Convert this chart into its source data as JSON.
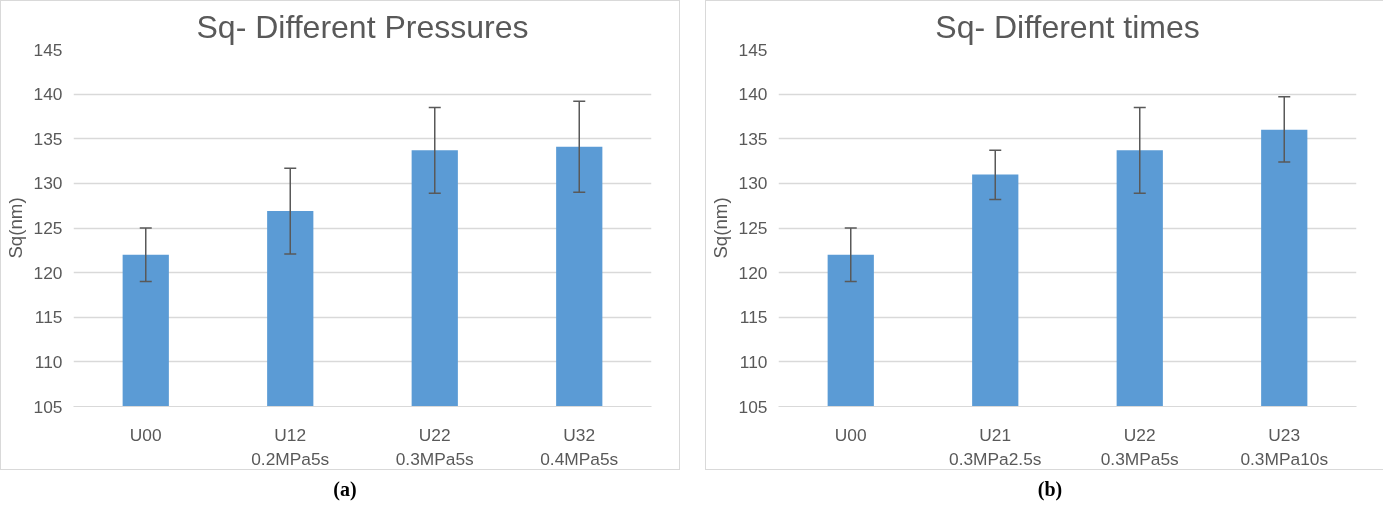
{
  "chart_data": [
    {
      "type": "bar",
      "title": "Sq- Different Pressures",
      "ylabel": "Sq(nm)",
      "categories": [
        "U00",
        "U12\n0.2MPa5s",
        "U22\n0.3MPa5s",
        "U32\n0.4MPa5s"
      ],
      "values": [
        122,
        126.9,
        133.7,
        134.1
      ],
      "errors": [
        [
          119,
          125
        ],
        [
          122.1,
          131.7
        ],
        [
          128.9,
          138.5
        ],
        [
          129.0,
          139.2
        ]
      ],
      "color": "#5b9bd5",
      "ylim": [
        105,
        145
      ],
      "yticks": [
        105,
        110,
        115,
        120,
        125,
        130,
        135,
        140,
        145
      ],
      "grid": "y",
      "annotations": [
        "(a)"
      ]
    },
    {
      "type": "bar",
      "title": "Sq- Different times",
      "ylabel": "Sq(nm)",
      "categories": [
        "U00",
        "U21\n0.3MPa2.5s",
        "U22\n0.3MPa5s",
        "U23\n0.3MPa10s"
      ],
      "values": [
        122,
        131,
        133.7,
        136
      ],
      "errors": [
        [
          119,
          125
        ],
        [
          128.2,
          133.7
        ],
        [
          128.9,
          138.5
        ],
        [
          132.4,
          139.7
        ]
      ],
      "color": "#5b9bd5",
      "ylim": [
        105,
        145
      ],
      "yticks": [
        105,
        110,
        115,
        120,
        125,
        130,
        135,
        140,
        145
      ],
      "grid": "y",
      "annotations": [
        "(b)"
      ]
    }
  ]
}
